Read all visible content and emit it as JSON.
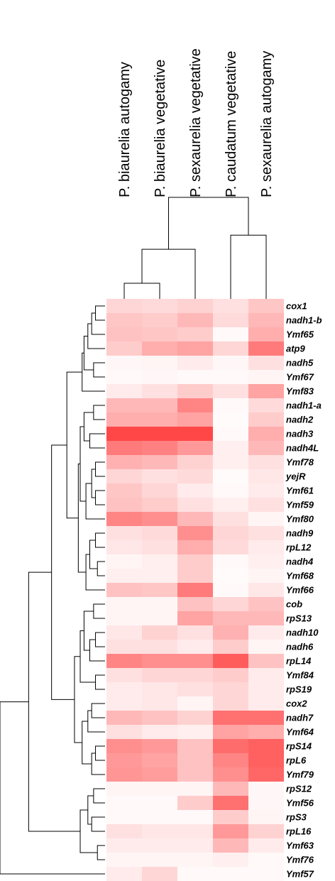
{
  "chart_data": {
    "type": "heatmap",
    "title": "",
    "xlabel": "",
    "ylabel": "",
    "columns": [
      "P. biaurelia autogamy",
      "P. biaurelia vegetative",
      "P. sexaurelia vegetative",
      "P. caudatum vegetative",
      "P. sexaurelia autogamy"
    ],
    "rows": [
      "cox1",
      "nadh1-b",
      "Ymf65",
      "atp9",
      "nadh5",
      "Ymf67",
      "Ymf83",
      "nadh1-a",
      "nadh2",
      "nadh3",
      "nadh4L",
      "Ymf78",
      "yejR",
      "Ymf61",
      "Ymf59",
      "Ymf80",
      "nadh9",
      "rpL12",
      "nadh4",
      "Ymf68",
      "Ymf66",
      "cob",
      "rpS13",
      "nadh10",
      "nadh6",
      "rpL14",
      "Ymf84",
      "rpS19",
      "cox2",
      "nadh7",
      "Ymf64",
      "rpS14",
      "rpL6",
      "Ymf79",
      "rpS12",
      "Ymf56",
      "rpS3",
      "rpL16",
      "Ymf63",
      "Ymf76",
      "Ymf57"
    ],
    "values": [
      [
        0.2,
        0.18,
        0.22,
        0.15,
        0.28
      ],
      [
        0.28,
        0.25,
        0.35,
        0.18,
        0.35
      ],
      [
        0.3,
        0.28,
        0.25,
        0.03,
        0.4
      ],
      [
        0.25,
        0.4,
        0.45,
        0.2,
        0.65
      ],
      [
        0.04,
        0.05,
        0.1,
        0.04,
        0.15
      ],
      [
        0.03,
        0.04,
        0.03,
        0.03,
        0.05
      ],
      [
        0.1,
        0.15,
        0.25,
        0.15,
        0.45
      ],
      [
        0.35,
        0.35,
        0.6,
        0.03,
        0.18
      ],
      [
        0.4,
        0.4,
        0.45,
        0.02,
        0.25
      ],
      [
        0.9,
        0.9,
        0.9,
        0.03,
        0.4
      ],
      [
        0.65,
        0.62,
        0.5,
        0.08,
        0.35
      ],
      [
        0.38,
        0.35,
        0.22,
        0.08,
        0.15
      ],
      [
        0.2,
        0.15,
        0.18,
        0.02,
        0.12
      ],
      [
        0.28,
        0.2,
        0.1,
        0.03,
        0.1
      ],
      [
        0.3,
        0.25,
        0.15,
        0.08,
        0.15
      ],
      [
        0.6,
        0.55,
        0.35,
        0.15,
        0.05
      ],
      [
        0.15,
        0.18,
        0.55,
        0.2,
        0.15
      ],
      [
        0.12,
        0.15,
        0.4,
        0.18,
        0.1
      ],
      [
        0.05,
        0.08,
        0.25,
        0.03,
        0.08
      ],
      [
        0.08,
        0.08,
        0.25,
        0.02,
        0.05
      ],
      [
        0.3,
        0.28,
        0.65,
        0.03,
        0.12
      ],
      [
        0.05,
        0.05,
        0.3,
        0.2,
        0.3
      ],
      [
        0.05,
        0.05,
        0.45,
        0.35,
        0.35
      ],
      [
        0.12,
        0.22,
        0.15,
        0.38,
        0.1
      ],
      [
        0.15,
        0.15,
        0.1,
        0.25,
        0.05
      ],
      [
        0.6,
        0.55,
        0.55,
        0.8,
        0.3
      ],
      [
        0.15,
        0.2,
        0.2,
        0.25,
        0.1
      ],
      [
        0.1,
        0.12,
        0.15,
        0.2,
        0.1
      ],
      [
        0.1,
        0.12,
        0.05,
        0.2,
        0.1
      ],
      [
        0.35,
        0.3,
        0.22,
        0.7,
        0.7
      ],
      [
        0.15,
        0.1,
        0.08,
        0.45,
        0.4
      ],
      [
        0.55,
        0.5,
        0.3,
        0.72,
        0.78
      ],
      [
        0.5,
        0.45,
        0.3,
        0.6,
        0.78
      ],
      [
        0.52,
        0.48,
        0.3,
        0.55,
        0.75
      ],
      [
        0.05,
        0.05,
        0.05,
        0.35,
        0.04
      ],
      [
        0.03,
        0.03,
        0.25,
        0.7,
        0.04
      ],
      [
        0.03,
        0.03,
        0.03,
        0.25,
        0.05
      ],
      [
        0.15,
        0.12,
        0.12,
        0.5,
        0.22
      ],
      [
        0.1,
        0.1,
        0.1,
        0.35,
        0.1
      ],
      [
        0.05,
        0.05,
        0.05,
        0.08,
        0.03
      ],
      [
        0.1,
        0.2,
        0.03,
        0.03,
        0.03
      ]
    ],
    "color_low": "#ffffff",
    "color_high": "#ff3333",
    "column_dendrogram": true,
    "row_dendrogram": true,
    "legend": "none"
  }
}
